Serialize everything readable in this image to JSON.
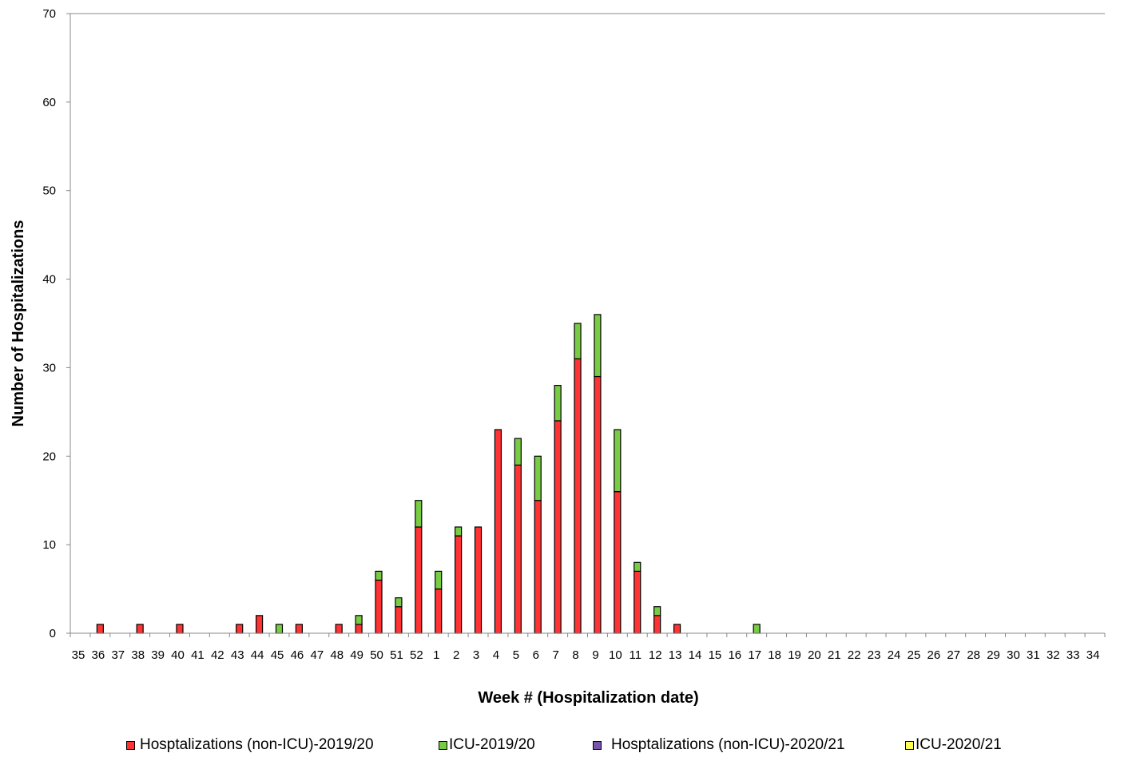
{
  "chart_data": {
    "type": "bar",
    "stacked": true,
    "xlabel": "Week # (Hospitalization date)",
    "ylabel": "Number of Hospitalizations",
    "ylim": [
      0,
      70
    ],
    "yticks": [
      "0",
      "10",
      "20",
      "30",
      "40",
      "50",
      "60",
      "70"
    ],
    "grid": false,
    "legend_position": "bottom",
    "categories": [
      "35",
      "36",
      "37",
      "38",
      "39",
      "40",
      "41",
      "42",
      "43",
      "44",
      "45",
      "46",
      "47",
      "48",
      "49",
      "50",
      "51",
      "52",
      "1",
      "2",
      "3",
      "4",
      "5",
      "6",
      "7",
      "8",
      "9",
      "10",
      "11",
      "12",
      "13",
      "14",
      "15",
      "16",
      "17",
      "18",
      "19",
      "20",
      "21",
      "22",
      "23",
      "24",
      "25",
      "26",
      "27",
      "28",
      "29",
      "30",
      "31",
      "32",
      "33",
      "34"
    ],
    "series": [
      {
        "name": "Hosptalizations (non-ICU)-2019/20",
        "color": "#ff3333",
        "values": [
          0,
          1,
          0,
          1,
          0,
          1,
          0,
          0,
          1,
          2,
          0,
          1,
          0,
          1,
          1,
          6,
          3,
          12,
          5,
          11,
          12,
          23,
          19,
          15,
          24,
          31,
          29,
          16,
          7,
          2,
          1,
          0,
          0,
          0,
          0,
          0,
          0,
          0,
          0,
          0,
          0,
          0,
          0,
          0,
          0,
          0,
          0,
          0,
          0,
          0,
          0,
          0
        ]
      },
      {
        "name": "ICU-2019/20",
        "color": "#77cc44",
        "values": [
          0,
          0,
          0,
          0,
          0,
          0,
          0,
          0,
          0,
          0,
          1,
          0,
          0,
          0,
          1,
          1,
          1,
          3,
          2,
          1,
          0,
          0,
          3,
          5,
          4,
          4,
          7,
          7,
          1,
          1,
          0,
          0,
          0,
          0,
          1,
          0,
          0,
          0,
          0,
          0,
          0,
          0,
          0,
          0,
          0,
          0,
          0,
          0,
          0,
          0,
          0,
          0
        ]
      },
      {
        "name": "Hosptalizations (non-ICU)-2020/21",
        "color": "#7755aa",
        "values": [
          0,
          0,
          0,
          0,
          0,
          0,
          0,
          0,
          0,
          0,
          0,
          0,
          0,
          0,
          0,
          0,
          0,
          0,
          0,
          0,
          0,
          0,
          0,
          0,
          0,
          0,
          0,
          0,
          0,
          0,
          0,
          0,
          0,
          0,
          0,
          0,
          0,
          0,
          0,
          0,
          0,
          0,
          0,
          0,
          0,
          0,
          0,
          0,
          0,
          0,
          0,
          0
        ]
      },
      {
        "name": "ICU-2020/21",
        "color": "#ffff55",
        "values": [
          0,
          0,
          0,
          0,
          0,
          0,
          0,
          0,
          0,
          0,
          0,
          0,
          0,
          0,
          0,
          0,
          0,
          0,
          0,
          0,
          0,
          0,
          0,
          0,
          0,
          0,
          0,
          0,
          0,
          0,
          0,
          0,
          0,
          0,
          0,
          0,
          0,
          0,
          0,
          0,
          0,
          0,
          0,
          0,
          0,
          0,
          0,
          0,
          0,
          0,
          0,
          0
        ]
      }
    ]
  }
}
